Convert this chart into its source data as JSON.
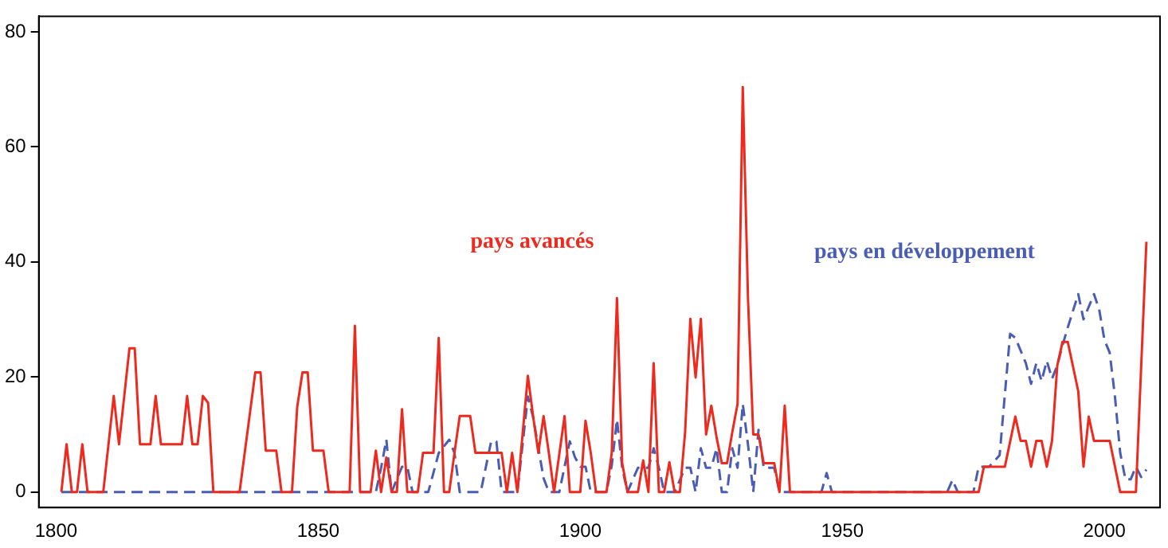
{
  "chart_data": {
    "type": "line",
    "xlim": [
      1796.7,
      2010.6
    ],
    "ylim": [
      -2.7,
      82.7
    ],
    "xticks": [
      1800,
      1850,
      1900,
      1950,
      2000
    ],
    "yticks": [
      0,
      20,
      40,
      60,
      80
    ],
    "grid": false,
    "legend": false,
    "marker": "none",
    "series": [
      {
        "name": "pays avancés",
        "color": "#ee2a1e",
        "line_style": "solid",
        "x": [
          1801,
          1802,
          1803,
          1804,
          1805,
          1806,
          1809,
          1811,
          1812,
          1814,
          1815,
          1816,
          1818,
          1819,
          1820,
          1824,
          1825,
          1826,
          1827,
          1828,
          1829,
          1830,
          1835,
          1838,
          1839,
          1840,
          1842,
          1843,
          1845,
          1846,
          1847,
          1848,
          1849,
          1851,
          1852,
          1856,
          1857,
          1858,
          1860,
          1861,
          1862,
          1863,
          1864,
          1865,
          1866,
          1867,
          1869,
          1870,
          1872,
          1873,
          1874,
          1875,
          1876,
          1877,
          1879,
          1880,
          1885,
          1886,
          1887,
          1888,
          1890,
          1891,
          1892,
          1893,
          1894,
          1895,
          1897,
          1898,
          1900,
          1901,
          1902,
          1903,
          1905,
          1906,
          1907,
          1908,
          1909,
          1911,
          1912,
          1913,
          1914,
          1915,
          1916,
          1917,
          1918,
          1919,
          1920,
          1921,
          1922,
          1923,
          1924,
          1925,
          1926,
          1927,
          1928,
          1929,
          1930,
          1931,
          1932,
          1933,
          1934,
          1935,
          1937,
          1938,
          1939,
          1940,
          1976,
          1977,
          1981,
          1983,
          1984,
          1985,
          1986,
          1987,
          1988,
          1989,
          1990,
          1991,
          1992,
          1993,
          1995,
          1996,
          1997,
          1998,
          2001,
          2003,
          2006,
          2008
        ],
        "values": [
          0,
          8.3,
          0,
          0,
          8.3,
          0,
          0,
          16.7,
          8.3,
          25,
          25,
          8.3,
          8.3,
          16.7,
          8.3,
          8.3,
          16.7,
          8.3,
          8.3,
          16.7,
          15.5,
          0,
          0,
          20.8,
          20.8,
          7.2,
          7.2,
          0,
          0,
          14.8,
          20.8,
          20.8,
          7.2,
          7.2,
          0,
          0,
          28.9,
          0,
          0,
          7.2,
          0,
          6,
          0,
          0,
          14.4,
          0,
          0,
          6.8,
          6.8,
          26.8,
          0,
          0,
          6.8,
          13.2,
          13.2,
          6.8,
          6.8,
          0,
          6.8,
          0,
          20.2,
          13.2,
          6.8,
          13.2,
          6.8,
          0,
          13.2,
          0,
          0,
          12.4,
          6.8,
          0,
          0,
          6.8,
          33.7,
          5,
          0,
          0,
          5.5,
          0,
          22.4,
          0,
          0,
          5.2,
          0,
          0,
          10.4,
          30.1,
          19.9,
          30.1,
          10,
          15,
          9.5,
          5,
          5,
          10.4,
          15.3,
          70.4,
          33.5,
          10,
          10,
          5,
          5,
          0,
          15,
          0,
          0,
          4.4,
          4.4,
          13.1,
          8.9,
          8.9,
          4.4,
          8.9,
          8.9,
          4.4,
          8.9,
          22,
          26.1,
          26.1,
          17.5,
          4.4,
          13.1,
          8.9,
          8.9,
          0,
          0,
          43.5
        ]
      },
      {
        "name": "pays en développement",
        "color": "#4a5db4",
        "line_style": "dashed",
        "x": [
          1801,
          1861,
          1862,
          1863,
          1864,
          1866,
          1867,
          1868,
          1871,
          1873,
          1875,
          1876,
          1877,
          1881,
          1883,
          1884,
          1885,
          1888,
          1890,
          1891,
          1892,
          1893,
          1894,
          1896,
          1898,
          1899,
          1900,
          1901,
          1902,
          1905,
          1906,
          1907,
          1908,
          1909,
          1911,
          1913,
          1914,
          1915,
          1916,
          1918,
          1920,
          1921,
          1922,
          1923,
          1924,
          1925,
          1926,
          1927,
          1928,
          1929,
          1930,
          1931,
          1932,
          1933,
          1934,
          1935,
          1937,
          1938,
          1946,
          1947,
          1948,
          1970,
          1971,
          1972,
          1975,
          1976,
          1978,
          1980,
          1982,
          1983,
          1985,
          1986,
          1987,
          1988,
          1989,
          1990,
          1991,
          1992,
          1993,
          1995,
          1996,
          1998,
          1999,
          2000,
          2001,
          2002,
          2003,
          2004,
          2005,
          2006,
          2007,
          2008
        ],
        "values": [
          0,
          0,
          4.2,
          9.1,
          0,
          4.4,
          4.4,
          0,
          0,
          6.8,
          9.1,
          6.8,
          0,
          0,
          8.8,
          8.8,
          0,
          0,
          16.6,
          13,
          7.7,
          2.4,
          0,
          0,
          8.8,
          6,
          4.4,
          4.4,
          0,
          0,
          4.6,
          12.6,
          4.2,
          0,
          4.2,
          4.2,
          7.6,
          4.2,
          0,
          0,
          4.2,
          4.2,
          0,
          7.6,
          4.2,
          4.2,
          7.6,
          0,
          0,
          7.6,
          4.2,
          15.3,
          8.2,
          0,
          10.8,
          4.2,
          4.2,
          0,
          0,
          3.3,
          0,
          0,
          2.1,
          0,
          0,
          4.4,
          4.4,
          6.4,
          27.5,
          26.8,
          22.4,
          18.8,
          22.4,
          19.3,
          22.8,
          19.7,
          22,
          25.5,
          28.6,
          34.4,
          30,
          34.4,
          31.7,
          26.4,
          24.2,
          16.6,
          6.8,
          2.2,
          2.2,
          4.4,
          2.6,
          3.9
        ]
      }
    ]
  }
}
